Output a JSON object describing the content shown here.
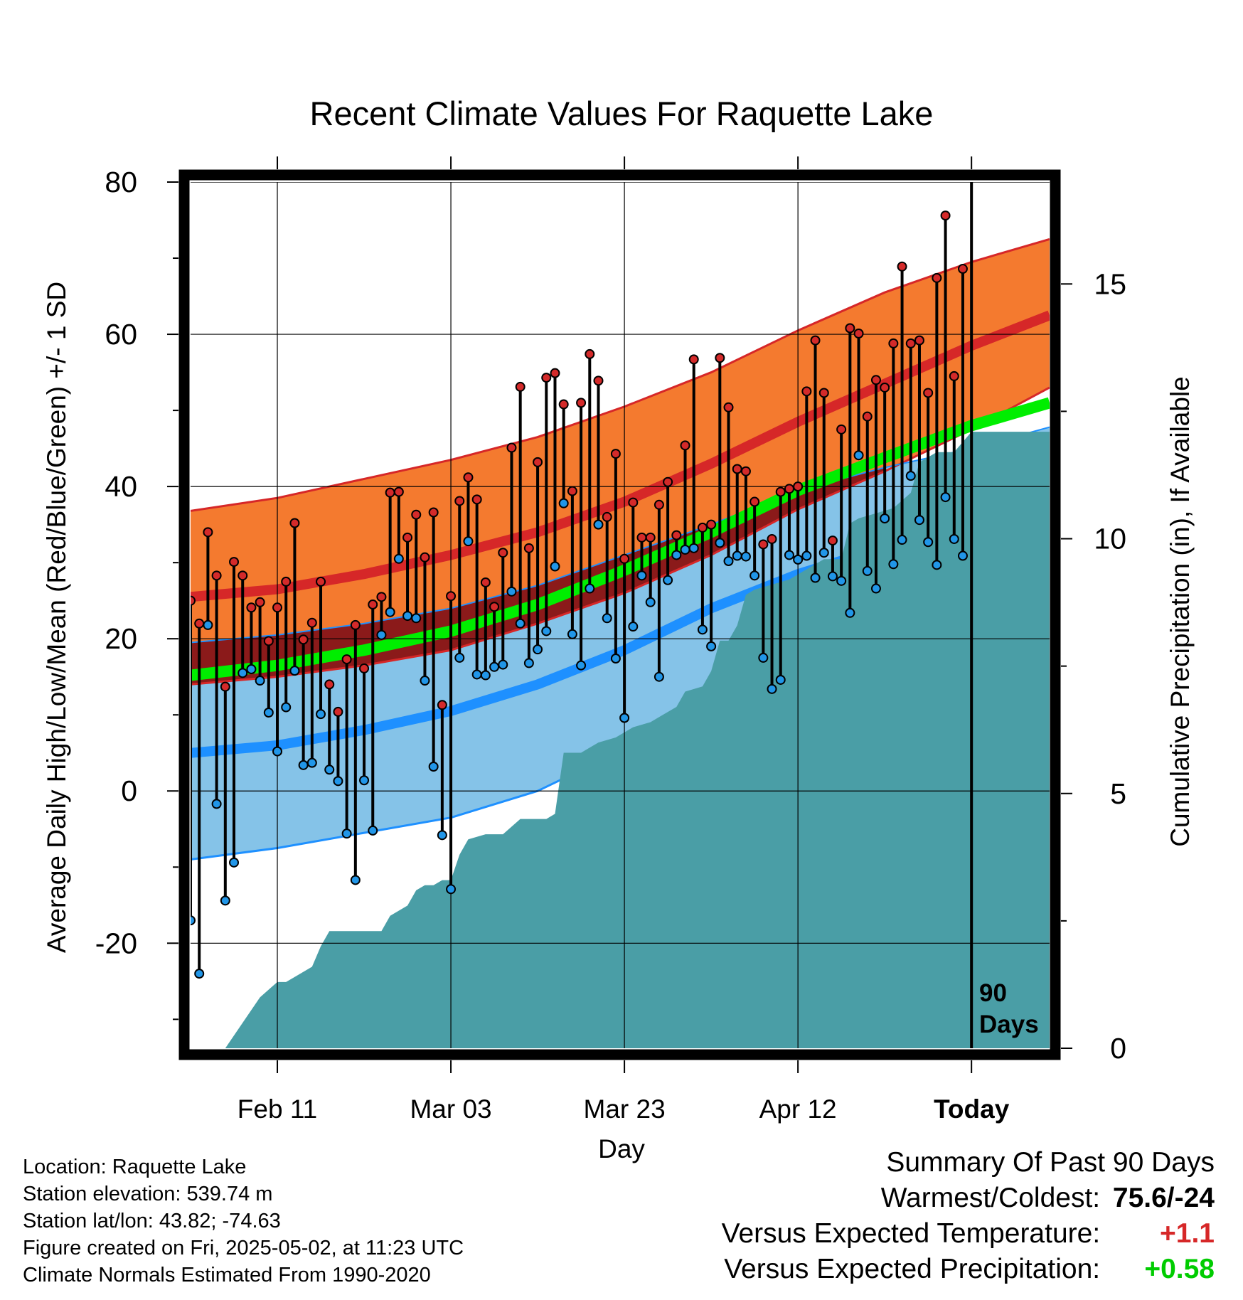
{
  "title": "Recent Climate Values For Raquette Lake",
  "y_left_label": "Average Daily High/Low/Mean (Red/Blue/Green) +/- 1 SD",
  "y_right_label": "Cumulative Precipitation (in), If Available",
  "x_label": "Day",
  "today_marker": {
    "line1": "90",
    "line2": "Days"
  },
  "info": {
    "location": "Location: Raquette Lake",
    "elevation": "Station elevation: 539.74 m",
    "latlon": "Station lat/lon: 43.82; -74.63",
    "created": "Figure created on Fri, 2025-05-02, at 11:23 UTC",
    "normals": "Climate Normals Estimated From 1990-2020"
  },
  "summary": {
    "heading": "Summary Of Past 90 Days",
    "warmest_label": "Warmest/Coldest:",
    "warmest_value": "75.6/-24",
    "temp_label": "Versus Expected Temperature:",
    "temp_value": "+1.1",
    "precip_label": "Versus Expected Precipitation:",
    "precip_value": "+0.58"
  },
  "colors": {
    "high_band": "#f47a2f",
    "high_line": "#d62728",
    "high_mean": "#8b1a1a",
    "low_band": "#85c3e8",
    "low_line": "#1e90ff",
    "mean_line": "#00ee00",
    "precip": "#4a9ea6",
    "marker_red": "#d42a2a",
    "marker_blue": "#2196e8",
    "summary_red": "#d62728",
    "summary_green": "#00cc00"
  },
  "chart_data": {
    "type": "line",
    "x_range_days": [
      1,
      100
    ],
    "today_day": 91,
    "ylim_left": [
      -33.8,
      80
    ],
    "yticks_left": [
      80,
      60,
      40,
      20,
      0,
      -20
    ],
    "ylim_right": [
      0,
      17
    ],
    "yticks_right": [
      15,
      10,
      5,
      0
    ],
    "xticks": [
      {
        "day": 11,
        "label": "Feb 11"
      },
      {
        "day": 31,
        "label": "Mar 03"
      },
      {
        "day": 51,
        "label": "Mar 23"
      },
      {
        "day": 71,
        "label": "Apr 12"
      },
      {
        "day": 91,
        "label": "Today"
      }
    ],
    "grid": true,
    "normals": {
      "days": [
        1,
        11,
        21,
        31,
        41,
        51,
        61,
        71,
        81,
        91,
        100
      ],
      "high_upper": [
        36.8,
        38.5,
        41,
        43.5,
        46.5,
        50.5,
        55,
        60.5,
        65.5,
        69.5,
        72.5
      ],
      "high_mean": [
        25.5,
        26.5,
        28.5,
        31,
        34,
        38,
        43,
        48.5,
        53.5,
        58.5,
        62.5
      ],
      "high_lower": [
        14,
        15,
        16.5,
        18.5,
        22,
        26,
        31,
        37,
        42,
        47.5,
        53
      ],
      "mean": [
        15.2,
        16.5,
        18.5,
        21,
        24.5,
        29,
        34,
        39.5,
        43.8,
        48,
        51
      ],
      "low_upper": [
        19.5,
        20.5,
        22,
        24,
        27,
        31,
        35,
        39.5,
        42.5,
        45,
        47.8
      ],
      "low_mean": [
        5,
        6,
        8,
        10.5,
        14,
        18.5,
        24,
        28.5,
        32,
        36,
        39.5
      ],
      "low_lower": [
        -9,
        -7.5,
        -5.5,
        -3.5,
        0,
        5.5,
        12.5,
        19,
        23.5,
        28,
        32.5
      ]
    },
    "daily": {
      "days": [
        1,
        2,
        3,
        4,
        5,
        6,
        7,
        8,
        9,
        10,
        11,
        12,
        13,
        14,
        15,
        16,
        17,
        18,
        19,
        20,
        21,
        22,
        23,
        24,
        25,
        26,
        27,
        28,
        29,
        30,
        31,
        32,
        33,
        34,
        35,
        36,
        37,
        38,
        39,
        40,
        41,
        42,
        43,
        44,
        45,
        46,
        47,
        48,
        49,
        50,
        51,
        52,
        53,
        54,
        55,
        56,
        57,
        58,
        59,
        60,
        61,
        62,
        63,
        64,
        65,
        66,
        67,
        68,
        69,
        70,
        71,
        72,
        73,
        74,
        75,
        76,
        77,
        78,
        79,
        80,
        81,
        82,
        83,
        84,
        85,
        86,
        87,
        88,
        89,
        90
      ],
      "high": [
        25,
        22,
        34,
        28.3,
        13.7,
        30.1,
        28.3,
        24.1,
        24.8,
        19.7,
        24.1,
        27.5,
        35.2,
        19.9,
        22.1,
        27.5,
        14,
        10.4,
        17.3,
        21.8,
        16.1,
        24.5,
        25.5,
        39.2,
        39.3,
        33.3,
        36.3,
        30.7,
        36.6,
        11.3,
        25.6,
        38.1,
        41.2,
        38.3,
        27.4,
        24.2,
        31.3,
        45.1,
        53.1,
        31.9,
        43.2,
        54.3,
        54.9,
        50.8,
        39.4,
        51,
        57.4,
        53.9,
        36,
        44.3,
        30.5,
        37.9,
        33.3,
        33.3,
        37.6,
        40.6,
        33.6,
        45.4,
        56.7,
        34.6,
        35,
        56.9,
        50.4,
        42.3,
        42,
        38,
        32.4,
        33.1,
        39.3,
        39.7,
        40,
        52.5,
        59.2,
        52.3,
        32.9,
        47.5,
        60.8,
        60.1,
        49.2,
        54,
        53,
        58.8,
        68.9,
        58.8,
        59.2,
        52.3,
        67.4,
        75.6,
        54.5,
        68.6
      ],
      "low": [
        -17,
        -24,
        21.8,
        -1.7,
        -14.4,
        -9.4,
        15.5,
        16,
        14.5,
        10.3,
        5.2,
        11,
        15.8,
        3.4,
        3.7,
        10.1,
        2.8,
        1.3,
        -5.6,
        -11.7,
        1.4,
        -5.2,
        20.5,
        23.5,
        30.5,
        23,
        22.7,
        14.5,
        3.2,
        -5.8,
        -12.9,
        17.5,
        32.8,
        15.3,
        15.2,
        16.3,
        16.6,
        26.2,
        22,
        16.8,
        18.6,
        21,
        29.5,
        37.8,
        20.6,
        16.5,
        26.6,
        35,
        22.7,
        17.4,
        9.6,
        21.6,
        28.3,
        24.8,
        15,
        27.7,
        31,
        31.7,
        31.9,
        21.2,
        19,
        32.6,
        30.2,
        30.9,
        30.8,
        28.3,
        17.5,
        13.4,
        14.6,
        31,
        30.4,
        30.9,
        28,
        31.3,
        28.2,
        27.6,
        23.4,
        44.1,
        28.9,
        26.6,
        35.8,
        29.8,
        33,
        41.4,
        35.6,
        32.7,
        29.7,
        38.6,
        33.1,
        30.9
      ]
    },
    "precip_cumulative": {
      "days": [
        1,
        5,
        9,
        11,
        12,
        13,
        15,
        16,
        17,
        18,
        23,
        24,
        26,
        27,
        28,
        29,
        30,
        31,
        32,
        33,
        35,
        37,
        39,
        42,
        43,
        44,
        46,
        47,
        48,
        50,
        52,
        54,
        55,
        56,
        57,
        58,
        60,
        61,
        62,
        63,
        64,
        65,
        66,
        70,
        71,
        74,
        75,
        76,
        77,
        78,
        80,
        82,
        84,
        85,
        86,
        87,
        88,
        89,
        91,
        100
      ],
      "values": [
        0,
        0,
        1,
        1.3,
        1.3,
        1.4,
        1.6,
        2,
        2.3,
        2.3,
        2.3,
        2.6,
        2.8,
        3.1,
        3.2,
        3.2,
        3.3,
        3.3,
        3.8,
        4.1,
        4.2,
        4.2,
        4.5,
        4.5,
        4.6,
        5.8,
        5.8,
        5.9,
        6,
        6.1,
        6.3,
        6.4,
        6.5,
        6.6,
        6.7,
        7,
        7.1,
        7.4,
        8,
        8,
        8.3,
        8.9,
        9,
        9.2,
        9.3,
        9.6,
        9.6,
        9.6,
        10.3,
        10.4,
        10.5,
        10.6,
        10.9,
        11.5,
        11.6,
        11.7,
        11.7,
        11.7,
        12.1,
        12.1
      ]
    }
  }
}
